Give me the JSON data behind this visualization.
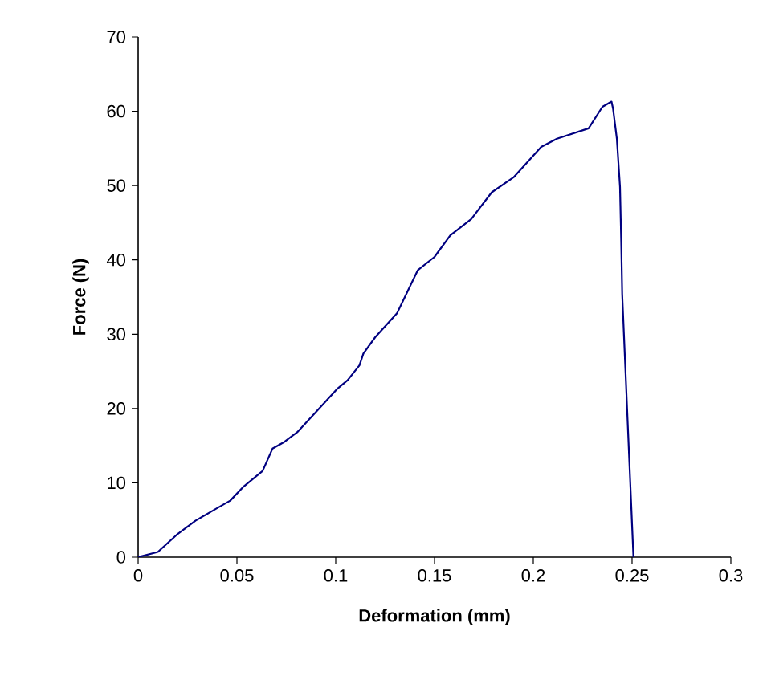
{
  "chart_data": {
    "type": "line",
    "xlabel": "Deformation (mm)",
    "ylabel": "Force (N)",
    "xlim": [
      0,
      0.3
    ],
    "ylim": [
      0,
      70
    ],
    "xticks": [
      0,
      0.05,
      0.1,
      0.15,
      0.2,
      0.25,
      0.3
    ],
    "yticks": [
      0,
      10,
      20,
      30,
      40,
      50,
      60,
      70
    ],
    "marker": "none",
    "line_style": "solid",
    "series": [
      {
        "color": "#000080",
        "x": [
          0,
          0.01,
          0.0195,
          0.029,
          0.04,
          0.0466,
          0.053,
          0.063,
          0.068,
          0.074,
          0.0805,
          0.101,
          0.106,
          0.112,
          0.114,
          0.12,
          0.131,
          0.1415,
          0.15,
          0.158,
          0.1686,
          0.179,
          0.19,
          0.204,
          0.212,
          0.228,
          0.235,
          0.2396,
          0.2404,
          0.2423,
          0.2439,
          0.2445,
          0.245,
          0.2507
        ],
        "values": [
          0,
          0.7,
          3.0,
          4.9,
          6.6,
          7.6,
          9.4,
          11.6,
          14.6,
          15.5,
          16.8,
          22.7,
          23.8,
          25.8,
          27.4,
          29.6,
          32.8,
          38.6,
          40.4,
          43.3,
          45.5,
          49.1,
          51.1,
          55.2,
          56.3,
          57.7,
          60.6,
          61.3,
          60.3,
          56.3,
          49.8,
          42.6,
          35.4,
          0
        ]
      }
    ]
  }
}
